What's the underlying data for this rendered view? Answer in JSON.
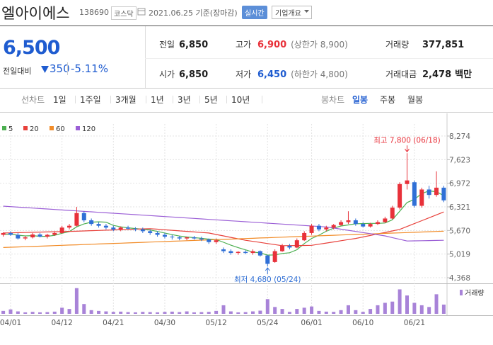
{
  "header": {
    "name": "엘아이에스",
    "code": "138690",
    "market": "코스닥",
    "date": "2021.06.25 기준(장마감)",
    "realtime": "실시간",
    "menu": "기업개요"
  },
  "quote": {
    "price": "6,500",
    "change_label": "전일대비",
    "change": "350",
    "change_rate": "-5.11%",
    "stats": [
      {
        "label": "전일",
        "value": "6,850"
      },
      {
        "label": "고가",
        "value": "6,900",
        "note": "(상한가 8,900)"
      },
      {
        "label": "거래량",
        "value": "377,851"
      },
      {
        "label": "시가",
        "value": "6,850"
      },
      {
        "label": "저가",
        "value": "6,450",
        "note": "(하한가 4,800)"
      },
      {
        "label": "거래대금",
        "value": "2,478",
        "unit": "백만"
      }
    ]
  },
  "tabs": {
    "line_label": "선차트",
    "line": [
      "1일",
      "1주일",
      "3개월",
      "1년",
      "3년",
      "5년",
      "10년"
    ],
    "candle_label": "봉차트",
    "candle": [
      "일봉",
      "주봉",
      "월봉"
    ]
  },
  "chart_data": {
    "type": "candlestick",
    "categories": [
      null,
      "04/01",
      null,
      null,
      null,
      null,
      null,
      null,
      "04/12",
      null,
      null,
      null,
      null,
      null,
      null,
      "04/21",
      null,
      null,
      null,
      null,
      null,
      null,
      "04/30",
      null,
      null,
      null,
      null,
      null,
      null,
      "05/12",
      null,
      null,
      null,
      null,
      null,
      null,
      "05/24",
      null,
      null,
      null,
      null,
      null,
      "06/01",
      null,
      null,
      null,
      null,
      null,
      null,
      "06/10",
      null,
      null,
      null,
      null,
      null,
      null,
      "06/21",
      null,
      null,
      null,
      null
    ],
    "up_color": "#e8313a",
    "down_color": "#2f6fd6",
    "candles": {
      "open": [
        5550,
        5600,
        5550,
        5450,
        5480,
        5560,
        5500,
        5550,
        5600,
        5750,
        5800,
        6150,
        5950,
        5850,
        5800,
        5750,
        5700,
        5750,
        5720,
        5700,
        5650,
        5600,
        5550,
        5500,
        5480,
        5450,
        5480,
        5450,
        5420,
        5350,
        5150,
        5100,
        5050,
        5080,
        5050,
        5100,
        4980,
        4800,
        5100,
        5250,
        5200,
        5400,
        5600,
        5800,
        5700,
        5750,
        5820,
        5900,
        5950,
        5850,
        5780,
        5850,
        5900,
        6000,
        6300,
        6950,
        7000,
        6350,
        6800,
        6650,
        6850
      ],
      "high": [
        5620,
        5650,
        5600,
        5520,
        5600,
        5600,
        5580,
        5650,
        5800,
        5850,
        6320,
        6200,
        6000,
        5900,
        5850,
        5800,
        5780,
        5800,
        5760,
        5750,
        5700,
        5650,
        5600,
        5550,
        5520,
        5500,
        5520,
        5500,
        5450,
        5450,
        5200,
        5150,
        5100,
        5120,
        5150,
        5120,
        5000,
        5150,
        5300,
        5300,
        5450,
        5650,
        5850,
        5850,
        5800,
        5850,
        5950,
        6200,
        6000,
        5900,
        5880,
        5950,
        6050,
        6350,
        7000,
        7800,
        7050,
        6850,
        6900,
        7300,
        6900
      ],
      "low": [
        5500,
        5520,
        5420,
        5400,
        5450,
        5480,
        5450,
        5520,
        5580,
        5700,
        5780,
        5900,
        5800,
        5750,
        5700,
        5650,
        5650,
        5700,
        5650,
        5600,
        5550,
        5500,
        5450,
        5420,
        5400,
        5400,
        5420,
        5380,
        5300,
        5300,
        5050,
        5000,
        5000,
        5020,
        5000,
        4950,
        4680,
        4780,
        5080,
        5150,
        5180,
        5380,
        5550,
        5650,
        5650,
        5700,
        5800,
        5850,
        5800,
        5750,
        5750,
        5820,
        5880,
        5980,
        6250,
        6800,
        6300,
        6300,
        6550,
        6600,
        6450
      ],
      "close": [
        5600,
        5550,
        5450,
        5480,
        5560,
        5500,
        5550,
        5600,
        5750,
        5800,
        6150,
        5950,
        5850,
        5800,
        5750,
        5700,
        5750,
        5720,
        5700,
        5650,
        5600,
        5550,
        5500,
        5480,
        5450,
        5480,
        5450,
        5420,
        5350,
        5400,
        5100,
        5050,
        5080,
        5050,
        5100,
        4980,
        4750,
        5100,
        5250,
        5200,
        5400,
        5600,
        5800,
        5700,
        5750,
        5820,
        5900,
        5950,
        5850,
        5780,
        5850,
        5900,
        6000,
        6300,
        6950,
        7050,
        6350,
        6800,
        6650,
        6850,
        6500
      ]
    },
    "series": [
      {
        "name": "5",
        "color": "#4caf50",
        "values": [
          5560,
          5570,
          5540,
          5520,
          5528,
          5508,
          5508,
          5538,
          5592,
          5640,
          5770,
          5850,
          5900,
          5910,
          5900,
          5810,
          5770,
          5744,
          5724,
          5704,
          5684,
          5644,
          5600,
          5556,
          5516,
          5492,
          5472,
          5456,
          5430,
          5420,
          5344,
          5264,
          5196,
          5136,
          5076,
          5052,
          4992,
          4996,
          5036,
          5056,
          5140,
          5310,
          5450,
          5540,
          5650,
          5734,
          5794,
          5824,
          5854,
          5860,
          5866,
          5866,
          5876,
          5966,
          6200,
          6440,
          6530,
          6690,
          6760,
          6740,
          6630
        ]
      },
      {
        "name": "20",
        "color": "#e8413b",
        "values": [
          5600,
          5605,
          5610,
          5615,
          5620,
          5625,
          5630,
          5635,
          5640,
          5645,
          5650,
          5657,
          5664,
          5671,
          5678,
          5685,
          5692,
          5699,
          5706,
          5713,
          5720,
          5705,
          5690,
          5675,
          5660,
          5645,
          5630,
          5615,
          5600,
          5560,
          5520,
          5480,
          5440,
          5400,
          5370,
          5340,
          5310,
          5280,
          5250,
          5252,
          5255,
          5257,
          5260,
          5292,
          5323,
          5355,
          5387,
          5418,
          5450,
          5492,
          5533,
          5575,
          5617,
          5658,
          5700,
          5780,
          5860,
          5940,
          6020,
          6100,
          6180
        ]
      },
      {
        "name": "60",
        "color": "#f28c28",
        "values": [
          5200,
          5208,
          5215,
          5223,
          5230,
          5238,
          5245,
          5253,
          5260,
          5268,
          5275,
          5283,
          5290,
          5298,
          5305,
          5313,
          5320,
          5328,
          5335,
          5343,
          5350,
          5358,
          5365,
          5373,
          5380,
          5388,
          5395,
          5403,
          5410,
          5418,
          5425,
          5433,
          5440,
          5448,
          5455,
          5463,
          5470,
          5478,
          5485,
          5493,
          5500,
          5508,
          5515,
          5523,
          5530,
          5538,
          5545,
          5553,
          5560,
          5568,
          5575,
          5583,
          5590,
          5598,
          5605,
          5613,
          5620,
          5628,
          5635,
          5643,
          5650
        ]
      },
      {
        "name": "120",
        "color": "#9b5fd6",
        "values": [
          6340,
          6327,
          6314,
          6301,
          6288,
          6275,
          6262,
          6249,
          6236,
          6223,
          6210,
          6197,
          6184,
          6171,
          6158,
          6145,
          6132,
          6119,
          6106,
          6093,
          6080,
          6067,
          6054,
          6041,
          6028,
          6015,
          6002,
          5989,
          5976,
          5963,
          5950,
          5937,
          5924,
          5911,
          5898,
          5885,
          5872,
          5859,
          5846,
          5833,
          5820,
          5807,
          5794,
          5781,
          5768,
          5737,
          5706,
          5675,
          5644,
          5613,
          5582,
          5551,
          5520,
          5473,
          5427,
          5380,
          5384,
          5388,
          5392,
          5396,
          5400
        ]
      }
    ],
    "volume": {
      "name": "거래량",
      "color": "#a883d8",
      "ylim": [
        0,
        1100000
      ],
      "values": [
        120000,
        180000,
        100000,
        60000,
        80000,
        60000,
        70000,
        90000,
        250000,
        200000,
        1050000,
        400000,
        150000,
        120000,
        100000,
        80000,
        90000,
        70000,
        60000,
        80000,
        70000,
        60000,
        80000,
        90000,
        70000,
        100000,
        60000,
        70000,
        80000,
        120000,
        350000,
        100000,
        60000,
        70000,
        100000,
        130000,
        600000,
        280000,
        200000,
        80000,
        200000,
        250000,
        300000,
        120000,
        90000,
        80000,
        150000,
        350000,
        150000,
        80000,
        200000,
        350000,
        450000,
        500000,
        1000000,
        750000,
        450000,
        350000,
        280000,
        800000,
        377851
      ]
    },
    "annotations": [
      {
        "text": "최고 7,800 (06/18)",
        "at": "high",
        "color": "#e8313a"
      },
      {
        "text": "최저 4,680 (05/24)",
        "at": "low",
        "color": "#2f6fd6"
      }
    ],
    "ylim": [
      4212,
      8606
    ],
    "yticks": [
      {
        "value": 8274,
        "label": "8,274"
      },
      {
        "value": 7623,
        "label": "7,623"
      },
      {
        "value": 6972,
        "label": "6,972"
      },
      {
        "value": 6321,
        "label": "6,321"
      },
      {
        "value": 5670,
        "label": "5,670"
      },
      {
        "value": 5019,
        "label": "5,019"
      },
      {
        "value": 4368,
        "label": "4,368"
      }
    ],
    "grid": true
  }
}
